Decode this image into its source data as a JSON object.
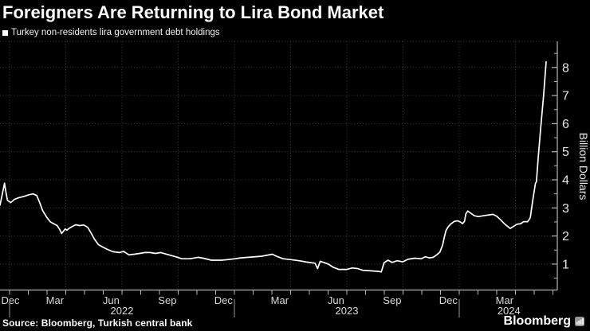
{
  "header": {
    "title": "Foreigners Are Returning to Lira Bond Market"
  },
  "legend": {
    "label": "Turkey non-residents lira government debt holdings"
  },
  "footer": {
    "source": "Source: Bloomberg, Turkish central bank",
    "brand": "Bloomberg"
  },
  "colors": {
    "background": "#000000",
    "line": "#ffffff",
    "grid": "#3e3e3e",
    "axis": "#b5b5b5",
    "tick_text": "#e6e6e6",
    "label_text": "#d9d9d9",
    "divider": "#9a9a9a",
    "logo_icon": "#969696"
  },
  "chart_data": {
    "type": "line",
    "title": "Turkey non-residents lira government debt holdings",
    "xlabel": "",
    "ylabel": "Billion Dollars",
    "ylim": [
      0,
      8.9
    ],
    "y_ticks": [
      1,
      2,
      3,
      4,
      5,
      6,
      7,
      8
    ],
    "y_minor_tick_step": 0.5,
    "grid": "dotted",
    "legend_position": "top-left",
    "x_unit": "months since 2022-01-01 (fractional)",
    "x_month_labels": [
      {
        "label": "Dec",
        "m": -1
      },
      {
        "label": "Mar",
        "m": 2
      },
      {
        "label": "Jun",
        "m": 5
      },
      {
        "label": "Sep",
        "m": 8
      },
      {
        "label": "Dec",
        "m": 11
      },
      {
        "label": "Mar",
        "m": 14
      },
      {
        "label": "Jun",
        "m": 17
      },
      {
        "label": "Sep",
        "m": 20
      },
      {
        "label": "Dec",
        "m": 23
      },
      {
        "label": "Mar",
        "m": 26
      }
    ],
    "x_year_labels": [
      {
        "label": "2022",
        "mStart": 0,
        "mEnd": 12
      },
      {
        "label": "2023",
        "mStart": 12,
        "mEnd": 24
      },
      {
        "label": "2024",
        "mStart": 24,
        "mEnd": 29.3
      }
    ],
    "x_month_tick_range": [
      -1,
      29
    ],
    "x_quarter_grid_range": [
      0,
      27
    ],
    "points": [
      [
        -0.51,
        3.1
      ],
      [
        -0.38,
        3.52
      ],
      [
        -0.27,
        3.88
      ],
      [
        -0.18,
        3.5
      ],
      [
        -0.11,
        3.27
      ],
      [
        0.06,
        3.19
      ],
      [
        0.27,
        3.31
      ],
      [
        0.48,
        3.36
      ],
      [
        0.77,
        3.41
      ],
      [
        1.05,
        3.47
      ],
      [
        1.26,
        3.5
      ],
      [
        1.45,
        3.44
      ],
      [
        1.62,
        3.17
      ],
      [
        1.76,
        2.91
      ],
      [
        1.97,
        2.68
      ],
      [
        2.18,
        2.5
      ],
      [
        2.4,
        2.42
      ],
      [
        2.54,
        2.37
      ],
      [
        2.66,
        2.25
      ],
      [
        2.78,
        2.09
      ],
      [
        2.97,
        2.25
      ],
      [
        3.06,
        2.21
      ],
      [
        3.2,
        2.28
      ],
      [
        3.32,
        2.33
      ],
      [
        3.53,
        2.4
      ],
      [
        3.74,
        2.37
      ],
      [
        3.96,
        2.39
      ],
      [
        4.17,
        2.31
      ],
      [
        4.34,
        2.12
      ],
      [
        4.52,
        1.9
      ],
      [
        4.74,
        1.69
      ],
      [
        4.99,
        1.6
      ],
      [
        5.23,
        1.52
      ],
      [
        5.52,
        1.44
      ],
      [
        5.87,
        1.41
      ],
      [
        6.09,
        1.45
      ],
      [
        6.37,
        1.33
      ],
      [
        6.65,
        1.35
      ],
      [
        6.95,
        1.38
      ],
      [
        7.22,
        1.41
      ],
      [
        7.5,
        1.41
      ],
      [
        7.79,
        1.38
      ],
      [
        8.07,
        1.41
      ],
      [
        8.5,
        1.33
      ],
      [
        8.92,
        1.25
      ],
      [
        9.19,
        1.19
      ],
      [
        9.62,
        1.19
      ],
      [
        10.06,
        1.24
      ],
      [
        10.34,
        1.21
      ],
      [
        10.77,
        1.14
      ],
      [
        11.32,
        1.14
      ],
      [
        11.62,
        1.16
      ],
      [
        12.04,
        1.19
      ],
      [
        12.33,
        1.22
      ],
      [
        12.89,
        1.25
      ],
      [
        13.46,
        1.28
      ],
      [
        14.03,
        1.35
      ],
      [
        14.24,
        1.28
      ],
      [
        14.6,
        1.19
      ],
      [
        15.02,
        1.16
      ],
      [
        15.45,
        1.12
      ],
      [
        15.87,
        1.07
      ],
      [
        16.3,
        1.03
      ],
      [
        16.44,
        0.84
      ],
      [
        16.58,
        1.1
      ],
      [
        16.8,
        1.05
      ],
      [
        17.01,
        1.0
      ],
      [
        17.29,
        0.88
      ],
      [
        17.57,
        0.81
      ],
      [
        18.0,
        0.81
      ],
      [
        18.28,
        0.86
      ],
      [
        18.57,
        0.84
      ],
      [
        18.85,
        0.78
      ],
      [
        19.28,
        0.76
      ],
      [
        19.7,
        0.74
      ],
      [
        19.84,
        0.72
      ],
      [
        19.99,
        1.05
      ],
      [
        20.2,
        1.14
      ],
      [
        20.41,
        1.06
      ],
      [
        20.69,
        1.12
      ],
      [
        20.98,
        1.08
      ],
      [
        21.26,
        1.17
      ],
      [
        21.62,
        1.21
      ],
      [
        21.97,
        1.19
      ],
      [
        22.18,
        1.26
      ],
      [
        22.4,
        1.22
      ],
      [
        22.61,
        1.24
      ],
      [
        22.82,
        1.34
      ],
      [
        22.97,
        1.43
      ],
      [
        23.11,
        1.67
      ],
      [
        23.2,
        1.95
      ],
      [
        23.29,
        2.19
      ],
      [
        23.39,
        2.31
      ],
      [
        23.53,
        2.42
      ],
      [
        23.74,
        2.52
      ],
      [
        23.91,
        2.54
      ],
      [
        24.06,
        2.5
      ],
      [
        24.17,
        2.44
      ],
      [
        24.28,
        2.52
      ],
      [
        24.35,
        2.78
      ],
      [
        24.45,
        2.89
      ],
      [
        24.6,
        2.82
      ],
      [
        24.81,
        2.72
      ],
      [
        25.02,
        2.69
      ],
      [
        25.37,
        2.73
      ],
      [
        25.59,
        2.75
      ],
      [
        25.8,
        2.77
      ],
      [
        26.01,
        2.7
      ],
      [
        26.23,
        2.56
      ],
      [
        26.44,
        2.42
      ],
      [
        26.72,
        2.27
      ],
      [
        27.08,
        2.42
      ],
      [
        27.29,
        2.44
      ],
      [
        27.43,
        2.51
      ],
      [
        27.65,
        2.51
      ],
      [
        27.79,
        2.65
      ],
      [
        27.93,
        3.31
      ],
      [
        28.07,
        3.88
      ],
      [
        28.12,
        3.93
      ],
      [
        28.21,
        4.73
      ],
      [
        28.35,
        5.86
      ],
      [
        28.5,
        7.0
      ],
      [
        28.64,
        8.2
      ]
    ]
  }
}
